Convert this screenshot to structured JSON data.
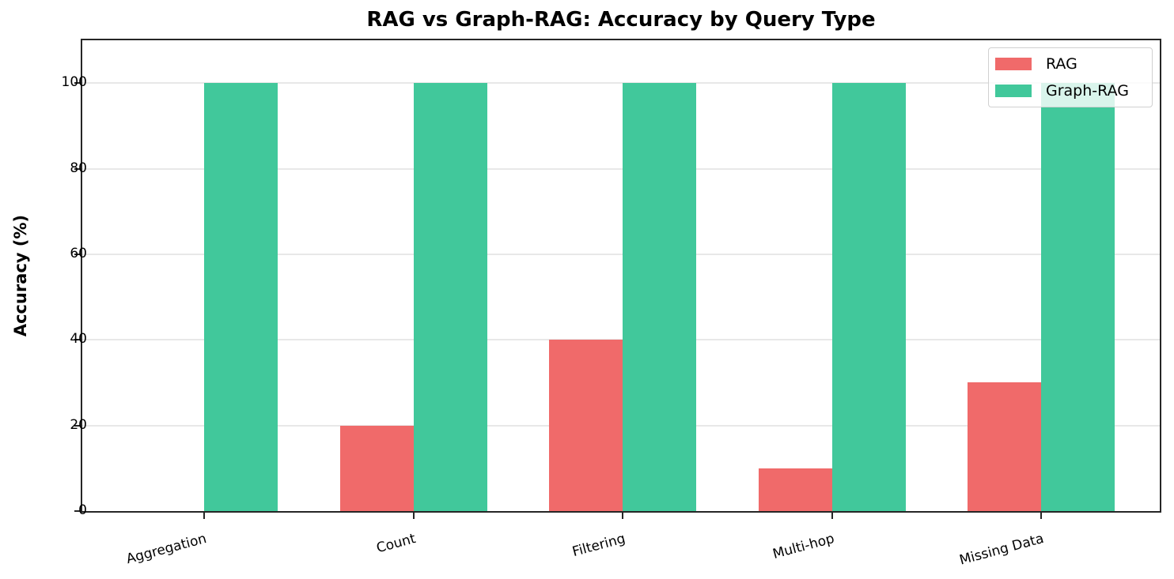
{
  "chart_data": {
    "type": "bar",
    "title": "RAG vs Graph-RAG: Accuracy by Query Type",
    "xlabel": "",
    "ylabel": "Accuracy (%)",
    "categories": [
      "Aggregation",
      "Count",
      "Filtering",
      "Multi-hop",
      "Missing Data"
    ],
    "series": [
      {
        "name": "RAG",
        "color": "#f06a6a",
        "values": [
          0,
          20,
          40,
          10,
          30
        ]
      },
      {
        "name": "Graph-RAG",
        "color": "#41c89b",
        "values": [
          100,
          100,
          100,
          100,
          100
        ]
      }
    ],
    "ylim": [
      0,
      110
    ],
    "yticks": [
      0,
      20,
      40,
      60,
      80,
      100
    ],
    "grid": "y",
    "legend_position": "upper right"
  },
  "labels": {
    "title": "RAG vs Graph-RAG: Accuracy by Query Type",
    "ylabel": "Accuracy (%)",
    "yticks": [
      "0",
      "20",
      "40",
      "60",
      "80",
      "100"
    ],
    "categories": [
      "Aggregation",
      "Count",
      "Filtering",
      "Multi-hop",
      "Missing Data"
    ],
    "legend": [
      "RAG",
      "Graph-RAG"
    ]
  }
}
